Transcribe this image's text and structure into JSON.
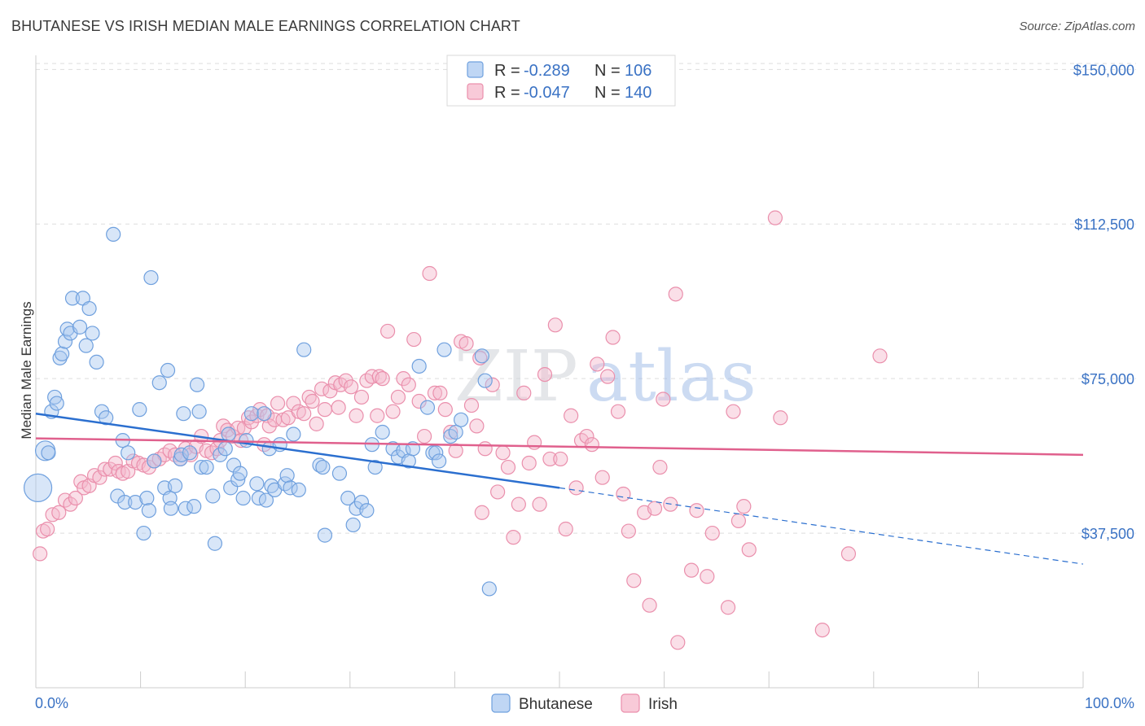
{
  "title": "BHUTANESE VS IRISH MEDIAN MALE EARNINGS CORRELATION CHART",
  "source": "Source: ZipAtlas.com",
  "watermark": {
    "zip": "ZIP",
    "atlas": "atlas"
  },
  "colors": {
    "bhutanese_fill": "#a9c8f0",
    "bhutanese_stroke": "#6fa0de",
    "bhutanese_line": "#2b6fcf",
    "irish_fill": "#f5b8cb",
    "irish_stroke": "#ea8fac",
    "irish_line": "#e0608d",
    "axis_text": "#3a72c4",
    "grid": "#dddddd"
  },
  "legend": {
    "rows": [
      {
        "r_label": "R =",
        "r_value": "-0.289",
        "n_label": "N =",
        "n_value": "106"
      },
      {
        "r_label": "R =",
        "r_value": "-0.047",
        "n_label": "N =",
        "n_value": "140"
      }
    ]
  },
  "chart_data": {
    "type": "scatter",
    "xlabel": "",
    "ylabel": "Median Male Earnings",
    "xlim": [
      0,
      100
    ],
    "ylim": [
      0,
      155000
    ],
    "x_tick_labels": [
      "0.0%",
      "100.0%"
    ],
    "y_ticks": [
      37500,
      75000,
      112500,
      150000
    ],
    "y_tick_labels": [
      "$37,500",
      "$75,000",
      "$112,500",
      "$150,000"
    ],
    "grid": true,
    "legend_position": "bottom-center",
    "series": [
      {
        "name": "Bhutanese",
        "trend": {
          "x0": 0,
          "y0": 66500,
          "x1": 50,
          "y1": 48500,
          "dash_x1": 100,
          "dash_y1": 30000
        },
        "points": [
          [
            0.2,
            48500
          ],
          [
            0.9,
            57500
          ],
          [
            1.2,
            57000
          ],
          [
            1.5,
            67000
          ],
          [
            1.8,
            70500
          ],
          [
            2.0,
            69000
          ],
          [
            2.3,
            80000
          ],
          [
            2.5,
            81000
          ],
          [
            2.8,
            84000
          ],
          [
            3.0,
            87000
          ],
          [
            3.3,
            86000
          ],
          [
            3.5,
            94500
          ],
          [
            4.2,
            87500
          ],
          [
            4.5,
            94500
          ],
          [
            4.8,
            83000
          ],
          [
            5.1,
            92000
          ],
          [
            5.4,
            86000
          ],
          [
            5.8,
            79000
          ],
          [
            6.3,
            67000
          ],
          [
            6.7,
            65500
          ],
          [
            7.4,
            110000
          ],
          [
            7.8,
            46500
          ],
          [
            8.3,
            60000
          ],
          [
            8.5,
            45000
          ],
          [
            8.8,
            57000
          ],
          [
            9.5,
            45000
          ],
          [
            9.9,
            67500
          ],
          [
            10.3,
            37500
          ],
          [
            10.6,
            46000
          ],
          [
            10.8,
            43000
          ],
          [
            11.0,
            99500
          ],
          [
            11.3,
            55000
          ],
          [
            11.8,
            74000
          ],
          [
            12.3,
            48500
          ],
          [
            12.6,
            77000
          ],
          [
            12.8,
            46000
          ],
          [
            12.9,
            43500
          ],
          [
            13.3,
            49000
          ],
          [
            13.8,
            55500
          ],
          [
            13.9,
            56500
          ],
          [
            14.1,
            66500
          ],
          [
            14.3,
            43500
          ],
          [
            14.7,
            57000
          ],
          [
            15.1,
            44000
          ],
          [
            15.4,
            73500
          ],
          [
            15.6,
            67000
          ],
          [
            15.8,
            53500
          ],
          [
            16.3,
            53500
          ],
          [
            16.9,
            46500
          ],
          [
            17.1,
            35000
          ],
          [
            17.6,
            56500
          ],
          [
            18.1,
            58000
          ],
          [
            18.4,
            61500
          ],
          [
            18.6,
            48500
          ],
          [
            18.9,
            54000
          ],
          [
            19.3,
            50500
          ],
          [
            19.5,
            52000
          ],
          [
            19.8,
            46000
          ],
          [
            20.1,
            60000
          ],
          [
            20.6,
            66500
          ],
          [
            21.1,
            49500
          ],
          [
            21.3,
            46000
          ],
          [
            21.8,
            66500
          ],
          [
            22.0,
            45500
          ],
          [
            22.3,
            58000
          ],
          [
            22.5,
            49000
          ],
          [
            22.8,
            48000
          ],
          [
            23.3,
            59000
          ],
          [
            23.8,
            49500
          ],
          [
            24.0,
            51500
          ],
          [
            24.3,
            48500
          ],
          [
            24.6,
            61500
          ],
          [
            25.1,
            48000
          ],
          [
            25.6,
            82000
          ],
          [
            27.1,
            54000
          ],
          [
            27.4,
            53500
          ],
          [
            27.6,
            37000
          ],
          [
            29.0,
            52000
          ],
          [
            29.8,
            46000
          ],
          [
            30.3,
            39500
          ],
          [
            30.6,
            43500
          ],
          [
            31.1,
            45000
          ],
          [
            31.6,
            43000
          ],
          [
            32.1,
            59000
          ],
          [
            32.4,
            53500
          ],
          [
            33.1,
            62000
          ],
          [
            34.1,
            58000
          ],
          [
            34.6,
            56000
          ],
          [
            35.1,
            57500
          ],
          [
            35.6,
            55000
          ],
          [
            36.0,
            58000
          ],
          [
            36.6,
            78000
          ],
          [
            37.4,
            68000
          ],
          [
            37.9,
            57000
          ],
          [
            38.2,
            57000
          ],
          [
            38.5,
            55000
          ],
          [
            39.0,
            82000
          ],
          [
            39.6,
            61000
          ],
          [
            40.1,
            62000
          ],
          [
            40.6,
            65000
          ],
          [
            42.6,
            80500
          ],
          [
            42.9,
            74500
          ],
          [
            43.3,
            24000
          ]
        ]
      },
      {
        "name": "Irish",
        "trend": {
          "x0": 0,
          "y0": 60500,
          "x1": 100,
          "y1": 56500
        },
        "points": [
          [
            0.4,
            32500
          ],
          [
            0.7,
            38000
          ],
          [
            1.1,
            38500
          ],
          [
            1.6,
            42000
          ],
          [
            2.2,
            42500
          ],
          [
            2.8,
            45500
          ],
          [
            3.3,
            44500
          ],
          [
            3.8,
            46000
          ],
          [
            4.3,
            50000
          ],
          [
            4.6,
            48500
          ],
          [
            5.1,
            49000
          ],
          [
            5.6,
            51500
          ],
          [
            6.1,
            51000
          ],
          [
            6.6,
            53000
          ],
          [
            7.1,
            53000
          ],
          [
            7.6,
            54500
          ],
          [
            7.9,
            52500
          ],
          [
            8.3,
            52000
          ],
          [
            8.8,
            52500
          ],
          [
            9.3,
            55000
          ],
          [
            9.8,
            54500
          ],
          [
            10.3,
            54000
          ],
          [
            10.8,
            53500
          ],
          [
            11.3,
            55000
          ],
          [
            11.8,
            55500
          ],
          [
            12.3,
            56500
          ],
          [
            12.8,
            57500
          ],
          [
            13.3,
            56500
          ],
          [
            13.8,
            55500
          ],
          [
            14.3,
            58000
          ],
          [
            14.8,
            56500
          ],
          [
            15.3,
            58500
          ],
          [
            15.8,
            61000
          ],
          [
            16.3,
            57500
          ],
          [
            16.8,
            57000
          ],
          [
            17.3,
            58000
          ],
          [
            17.6,
            60000
          ],
          [
            17.9,
            63500
          ],
          [
            18.3,
            62500
          ],
          [
            18.8,
            61000
          ],
          [
            19.3,
            63000
          ],
          [
            19.6,
            60000
          ],
          [
            19.9,
            63000
          ],
          [
            20.3,
            65500
          ],
          [
            20.6,
            64500
          ],
          [
            21.1,
            66000
          ],
          [
            21.4,
            67500
          ],
          [
            21.8,
            59000
          ],
          [
            22.1,
            66000
          ],
          [
            22.3,
            63500
          ],
          [
            22.8,
            65000
          ],
          [
            23.1,
            69000
          ],
          [
            23.6,
            65000
          ],
          [
            24.1,
            65500
          ],
          [
            24.6,
            69000
          ],
          [
            25.1,
            67000
          ],
          [
            25.6,
            66500
          ],
          [
            26.1,
            70500
          ],
          [
            26.4,
            69500
          ],
          [
            26.8,
            64000
          ],
          [
            27.3,
            72500
          ],
          [
            27.6,
            67500
          ],
          [
            28.1,
            72000
          ],
          [
            28.6,
            74000
          ],
          [
            28.9,
            68000
          ],
          [
            29.1,
            73500
          ],
          [
            29.6,
            74500
          ],
          [
            30.1,
            73000
          ],
          [
            30.6,
            66000
          ],
          [
            31.1,
            70500
          ],
          [
            31.6,
            74500
          ],
          [
            32.1,
            75500
          ],
          [
            32.6,
            66000
          ],
          [
            32.8,
            75500
          ],
          [
            33.1,
            75000
          ],
          [
            33.6,
            86500
          ],
          [
            34.1,
            67000
          ],
          [
            34.6,
            70500
          ],
          [
            35.1,
            75000
          ],
          [
            35.6,
            73500
          ],
          [
            36.1,
            84500
          ],
          [
            36.6,
            69500
          ],
          [
            37.1,
            61000
          ],
          [
            37.6,
            100500
          ],
          [
            38.1,
            71500
          ],
          [
            38.6,
            71500
          ],
          [
            39.1,
            67500
          ],
          [
            39.6,
            62000
          ],
          [
            40.1,
            57500
          ],
          [
            40.6,
            84000
          ],
          [
            41.1,
            83500
          ],
          [
            41.6,
            68500
          ],
          [
            42.1,
            63500
          ],
          [
            42.4,
            80000
          ],
          [
            42.6,
            42500
          ],
          [
            42.9,
            58000
          ],
          [
            43.6,
            73500
          ],
          [
            44.1,
            47500
          ],
          [
            44.6,
            57000
          ],
          [
            45.1,
            53500
          ],
          [
            45.6,
            36500
          ],
          [
            46.1,
            44500
          ],
          [
            46.6,
            71500
          ],
          [
            47.1,
            54500
          ],
          [
            47.6,
            59500
          ],
          [
            48.1,
            44500
          ],
          [
            48.6,
            76000
          ],
          [
            49.1,
            55500
          ],
          [
            49.6,
            88000
          ],
          [
            50.1,
            55500
          ],
          [
            50.6,
            38500
          ],
          [
            51.1,
            66000
          ],
          [
            51.6,
            48500
          ],
          [
            52.1,
            60000
          ],
          [
            52.6,
            61000
          ],
          [
            53.1,
            59000
          ],
          [
            53.6,
            78500
          ],
          [
            54.1,
            51000
          ],
          [
            54.6,
            75500
          ],
          [
            55.1,
            85000
          ],
          [
            55.6,
            67000
          ],
          [
            56.1,
            47000
          ],
          [
            56.6,
            38000
          ],
          [
            57.1,
            26000
          ],
          [
            58.1,
            42500
          ],
          [
            58.6,
            20000
          ],
          [
            59.1,
            43500
          ],
          [
            59.6,
            53500
          ],
          [
            59.9,
            70000
          ],
          [
            60.6,
            44500
          ],
          [
            61.1,
            95500
          ],
          [
            61.3,
            11000
          ],
          [
            62.6,
            28500
          ],
          [
            63.1,
            43000
          ],
          [
            64.1,
            27000
          ],
          [
            64.6,
            37500
          ],
          [
            66.1,
            19500
          ],
          [
            66.6,
            67000
          ],
          [
            67.1,
            40500
          ],
          [
            67.6,
            44000
          ],
          [
            68.1,
            33500
          ],
          [
            70.6,
            114000
          ],
          [
            71.1,
            65500
          ],
          [
            75.1,
            14000
          ],
          [
            77.6,
            32500
          ],
          [
            80.6,
            80500
          ]
        ]
      }
    ]
  },
  "bottom_legend": [
    {
      "label": "Bhutanese"
    },
    {
      "label": "Irish"
    }
  ]
}
